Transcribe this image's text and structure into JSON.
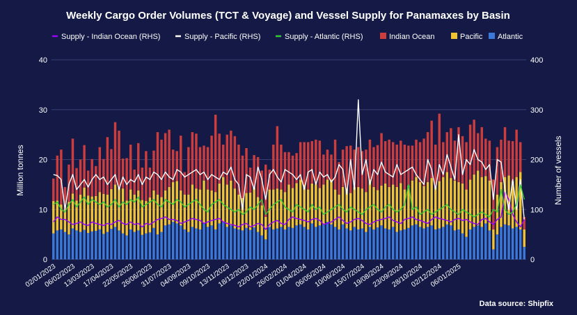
{
  "chart_data": {
    "type": "bar",
    "title": "Weekly Cargo Order Volumes (TCT & Voyage) and Vessel Supply for Panamaxes by Basin",
    "ylabel": "Million tonnes",
    "y2label": "Number of vessels",
    "ylim": [
      0,
      40
    ],
    "y2lim": [
      0,
      400
    ],
    "yticks": [
      0,
      10,
      20,
      30,
      40
    ],
    "y2ticks": [
      0,
      100,
      200,
      300,
      400
    ],
    "x_tick_labels": [
      "02/01/2023",
      "06/02/2023",
      "13/03/2023",
      "17/04/2023",
      "22/05/2023",
      "26/06/2023",
      "31/07/2023",
      "04/09/2023",
      "09/10/2023",
      "13/11/2023",
      "18/12/2023",
      "22/01/2024",
      "26/02/2024",
      "01/04/2024",
      "06/05/2024",
      "10/06/2024",
      "15/07/2024",
      "19/08/2024",
      "23/09/2024",
      "28/10/2024",
      "02/12/2024",
      "06/01/2025"
    ],
    "x_tick_every": 5,
    "stacked": true,
    "series": [
      {
        "name": "Atlantic",
        "kind": "bar",
        "color": "#3c78d8",
        "values": [
          5.2,
          5.8,
          6.0,
          5.5,
          5.0,
          6.2,
          5.8,
          5.5,
          5.9,
          5.3,
          5.6,
          5.7,
          6.0,
          5.1,
          5.5,
          6.1,
          6.5,
          5.8,
          5.2,
          4.8,
          6.0,
          5.5,
          5.8,
          4.9,
          5.2,
          5.4,
          6.3,
          5.0,
          5.5,
          6.8,
          7.0,
          7.5,
          7.2,
          6.8,
          6.0,
          5.5,
          6.5,
          6.2,
          6.0,
          7.3,
          6.5,
          6.8,
          6.0,
          7.2,
          7.5,
          6.5,
          6.8,
          6.2,
          6.0,
          5.8,
          6.3,
          5.9,
          6.4,
          5.5,
          4.8,
          4.0,
          6.5,
          6.0,
          6.2,
          6.5,
          6.0,
          6.5,
          6.3,
          6.8,
          7.0,
          6.5,
          6.0,
          7.2,
          6.5,
          6.8,
          7.0,
          7.5,
          7.0,
          6.5,
          6.0,
          7.0,
          6.2,
          5.8,
          6.5,
          6.0,
          6.2,
          5.5,
          6.5,
          6.0,
          6.4,
          6.8,
          6.2,
          6.0,
          6.5,
          5.5,
          5.8,
          6.0,
          6.3,
          6.8,
          7.0,
          6.5,
          6.2,
          6.5,
          6.8,
          6.0,
          6.2,
          6.5,
          7.0,
          6.8,
          5.8,
          6.0,
          5.2,
          4.5,
          6.0,
          6.5,
          6.8,
          6.5,
          7.2,
          5.8,
          2.0,
          5.0,
          6.5,
          7.0,
          6.8,
          6.2,
          6.5,
          6.0,
          2.5
        ]
      },
      {
        "name": "Pacific",
        "kind": "bar",
        "color": "#f1c232",
        "values": [
          6.5,
          6.0,
          5.0,
          4.5,
          6.5,
          7.0,
          6.0,
          7.5,
          8.5,
          7.5,
          7.0,
          7.0,
          7.5,
          8.0,
          7.5,
          8.0,
          8.5,
          8.5,
          9.0,
          7.0,
          8.0,
          7.5,
          8.0,
          7.0,
          6.5,
          7.0,
          7.5,
          8.0,
          7.0,
          7.0,
          7.5,
          8.0,
          8.5,
          7.0,
          7.0,
          7.5,
          8.5,
          8.0,
          8.0,
          8.5,
          7.5,
          7.0,
          7.5,
          8.0,
          9.0,
          8.5,
          9.0,
          8.0,
          7.0,
          6.5,
          7.0,
          7.5,
          8.0,
          7.0,
          6.0,
          4.5,
          7.5,
          8.0,
          8.0,
          7.5,
          7.5,
          8.5,
          8.0,
          8.5,
          9.0,
          8.5,
          8.0,
          8.0,
          8.5,
          7.5,
          8.0,
          8.5,
          9.0,
          7.5,
          7.0,
          7.5,
          8.0,
          7.5,
          8.0,
          8.5,
          8.0,
          8.0,
          9.5,
          8.5,
          7.5,
          8.0,
          9.0,
          8.5,
          8.5,
          9.0,
          9.5,
          8.0,
          8.5,
          9.0,
          9.5,
          9.0,
          8.5,
          9.0,
          9.5,
          8.5,
          9.5,
          10.0,
          10.5,
          9.5,
          10.0,
          9.5,
          10.0,
          9.5,
          10.0,
          10.5,
          11.0,
          10.0,
          9.5,
          10.0,
          4.0,
          8.0,
          9.0,
          9.5,
          10.0,
          9.5,
          10.0,
          11.5,
          3.5
        ]
      },
      {
        "name": "Indian Ocean",
        "kind": "bar",
        "color": "#cc3d3d",
        "values": [
          4.5,
          9.0,
          11.0,
          4.5,
          7.5,
          11.0,
          6.5,
          7.0,
          8.5,
          5.0,
          7.5,
          6.0,
          9.0,
          7.0,
          11.5,
          8.0,
          12.5,
          11.5,
          6.0,
          8.5,
          9.0,
          5.0,
          9.5,
          6.5,
          10.0,
          6.0,
          8.0,
          12.5,
          11.5,
          11.5,
          11.5,
          6.5,
          6.0,
          11.0,
          4.5,
          9.5,
          10.5,
          11.0,
          8.5,
          7.0,
          8.5,
          11.0,
          15.5,
          10.0,
          6.5,
          10.0,
          10.0,
          10.5,
          10.0,
          8.5,
          9.0,
          5.0,
          6.5,
          8.0,
          7.0,
          10.5,
          4.0,
          9.0,
          12.5,
          9.0,
          8.0,
          6.5,
          6.5,
          6.0,
          7.5,
          8.5,
          9.5,
          8.5,
          9.0,
          9.5,
          6.0,
          6.0,
          5.0,
          10.0,
          6.5,
          7.5,
          8.5,
          9.5,
          7.5,
          8.0,
          7.5,
          8.5,
          8.0,
          8.0,
          9.0,
          10.5,
          8.5,
          9.5,
          8.5,
          8.5,
          8.5,
          9.0,
          8.0,
          7.0,
          7.5,
          8.0,
          9.5,
          10.0,
          11.5,
          8.5,
          13.5,
          7.0,
          8.0,
          10.0,
          8.0,
          11.0,
          9.5,
          9.5,
          11.0,
          11.0,
          7.5,
          10.0,
          7.5,
          8.0,
          10.0,
          9.5,
          8.5,
          10.0,
          7.0,
          8.0,
          9.5,
          6.0,
          2.5
        ]
      },
      {
        "name": "Supply - Indian Ocean (RHS)",
        "kind": "line",
        "color": "#9900ff",
        "values": [
          75,
          85,
          80,
          80,
          75,
          70,
          72,
          75,
          70,
          68,
          75,
          72,
          70,
          68,
          72,
          70,
          75,
          78,
          72,
          70,
          75,
          70,
          72,
          65,
          72,
          70,
          75,
          80,
          82,
          85,
          80,
          80,
          78,
          72,
          75,
          78,
          82,
          80,
          78,
          72,
          75,
          78,
          80,
          82,
          75,
          72,
          70,
          68,
          65,
          70,
          72,
          65,
          68,
          72,
          70,
          60,
          70,
          75,
          78,
          72,
          70,
          80,
          85,
          82,
          80,
          78,
          75,
          80,
          82,
          78,
          70,
          72,
          75,
          80,
          85,
          78,
          72,
          75,
          80,
          82,
          78,
          72,
          70,
          75,
          78,
          80,
          82,
          85,
          78,
          75,
          72,
          80,
          82,
          85,
          80,
          78,
          75,
          72,
          80,
          85,
          82,
          80,
          78,
          75,
          80,
          82,
          78,
          80,
          75,
          72,
          70,
          80,
          82,
          75,
          70,
          80,
          85,
          135,
          120,
          90,
          75,
          65,
          80
        ]
      },
      {
        "name": "Supply - Pacific (RHS)",
        "kind": "line",
        "color": "#ffffff",
        "values": [
          170,
          168,
          160,
          100,
          150,
          170,
          140,
          150,
          160,
          145,
          160,
          170,
          160,
          165,
          150,
          160,
          170,
          140,
          165,
          150,
          160,
          155,
          170,
          150,
          165,
          160,
          175,
          170,
          160,
          175,
          165,
          160,
          180,
          175,
          165,
          170,
          175,
          180,
          170,
          175,
          160,
          170,
          165,
          160,
          175,
          170,
          185,
          160,
          150,
          100,
          170,
          165,
          140,
          185,
          160,
          120,
          170,
          180,
          165,
          155,
          180,
          175,
          170,
          160,
          170,
          140,
          175,
          180,
          150,
          175,
          165,
          170,
          155,
          165,
          190,
          180,
          130,
          200,
          140,
          320,
          170,
          200,
          150,
          180,
          170,
          195,
          175,
          170,
          165,
          190,
          170,
          175,
          180,
          185,
          170,
          160,
          150,
          200,
          180,
          140,
          190,
          170,
          210,
          185,
          160,
          250,
          170,
          200,
          190,
          220,
          200,
          195,
          180,
          190,
          120,
          200,
          195,
          140,
          100,
          160,
          100,
          160,
          80
        ]
      },
      {
        "name": "Supply - Atlantic (RHS)",
        "kind": "line",
        "color": "#33cc33",
        "values": [
          110,
          115,
          100,
          95,
          110,
          120,
          105,
          115,
          125,
          110,
          120,
          115,
          110,
          115,
          105,
          110,
          120,
          105,
          115,
          110,
          120,
          115,
          125,
          105,
          110,
          115,
          120,
          110,
          105,
          120,
          115,
          110,
          120,
          115,
          105,
          110,
          115,
          120,
          110,
          100,
          95,
          110,
          115,
          120,
          110,
          105,
          100,
          95,
          100,
          90,
          95,
          105,
          100,
          110,
          120,
          90,
          100,
          110,
          115,
          120,
          105,
          100,
          95,
          110,
          105,
          100,
          95,
          110,
          100,
          105,
          90,
          95,
          100,
          105,
          110,
          100,
          95,
          105,
          100,
          95,
          90,
          100,
          105,
          110,
          100,
          95,
          105,
          110,
          100,
          95,
          100,
          110,
          150,
          100,
          105,
          90,
          95,
          100,
          90,
          95,
          100,
          105,
          110,
          100,
          95,
          90,
          100,
          95,
          90,
          85,
          90,
          95,
          90,
          85,
          100,
          95,
          140,
          100,
          90,
          95,
          110,
          150,
          120
        ]
      }
    ]
  },
  "legend": [
    {
      "label": "Supply - Indian Ocean (RHS)",
      "type": "line",
      "color": "#9900ff"
    },
    {
      "label": "Supply - Pacific (RHS)",
      "type": "line",
      "color": "#ffffff"
    },
    {
      "label": "Supply - Atlantic (RHS)",
      "type": "line",
      "color": "#33cc33"
    },
    {
      "label": "Indian Ocean",
      "type": "box",
      "color": "#cc3d3d"
    },
    {
      "label": "Pacific",
      "type": "box",
      "color": "#f1c232"
    },
    {
      "label": "Atlantic",
      "type": "box",
      "color": "#3c78d8"
    }
  ],
  "source_text": "Data source: Shipfix"
}
